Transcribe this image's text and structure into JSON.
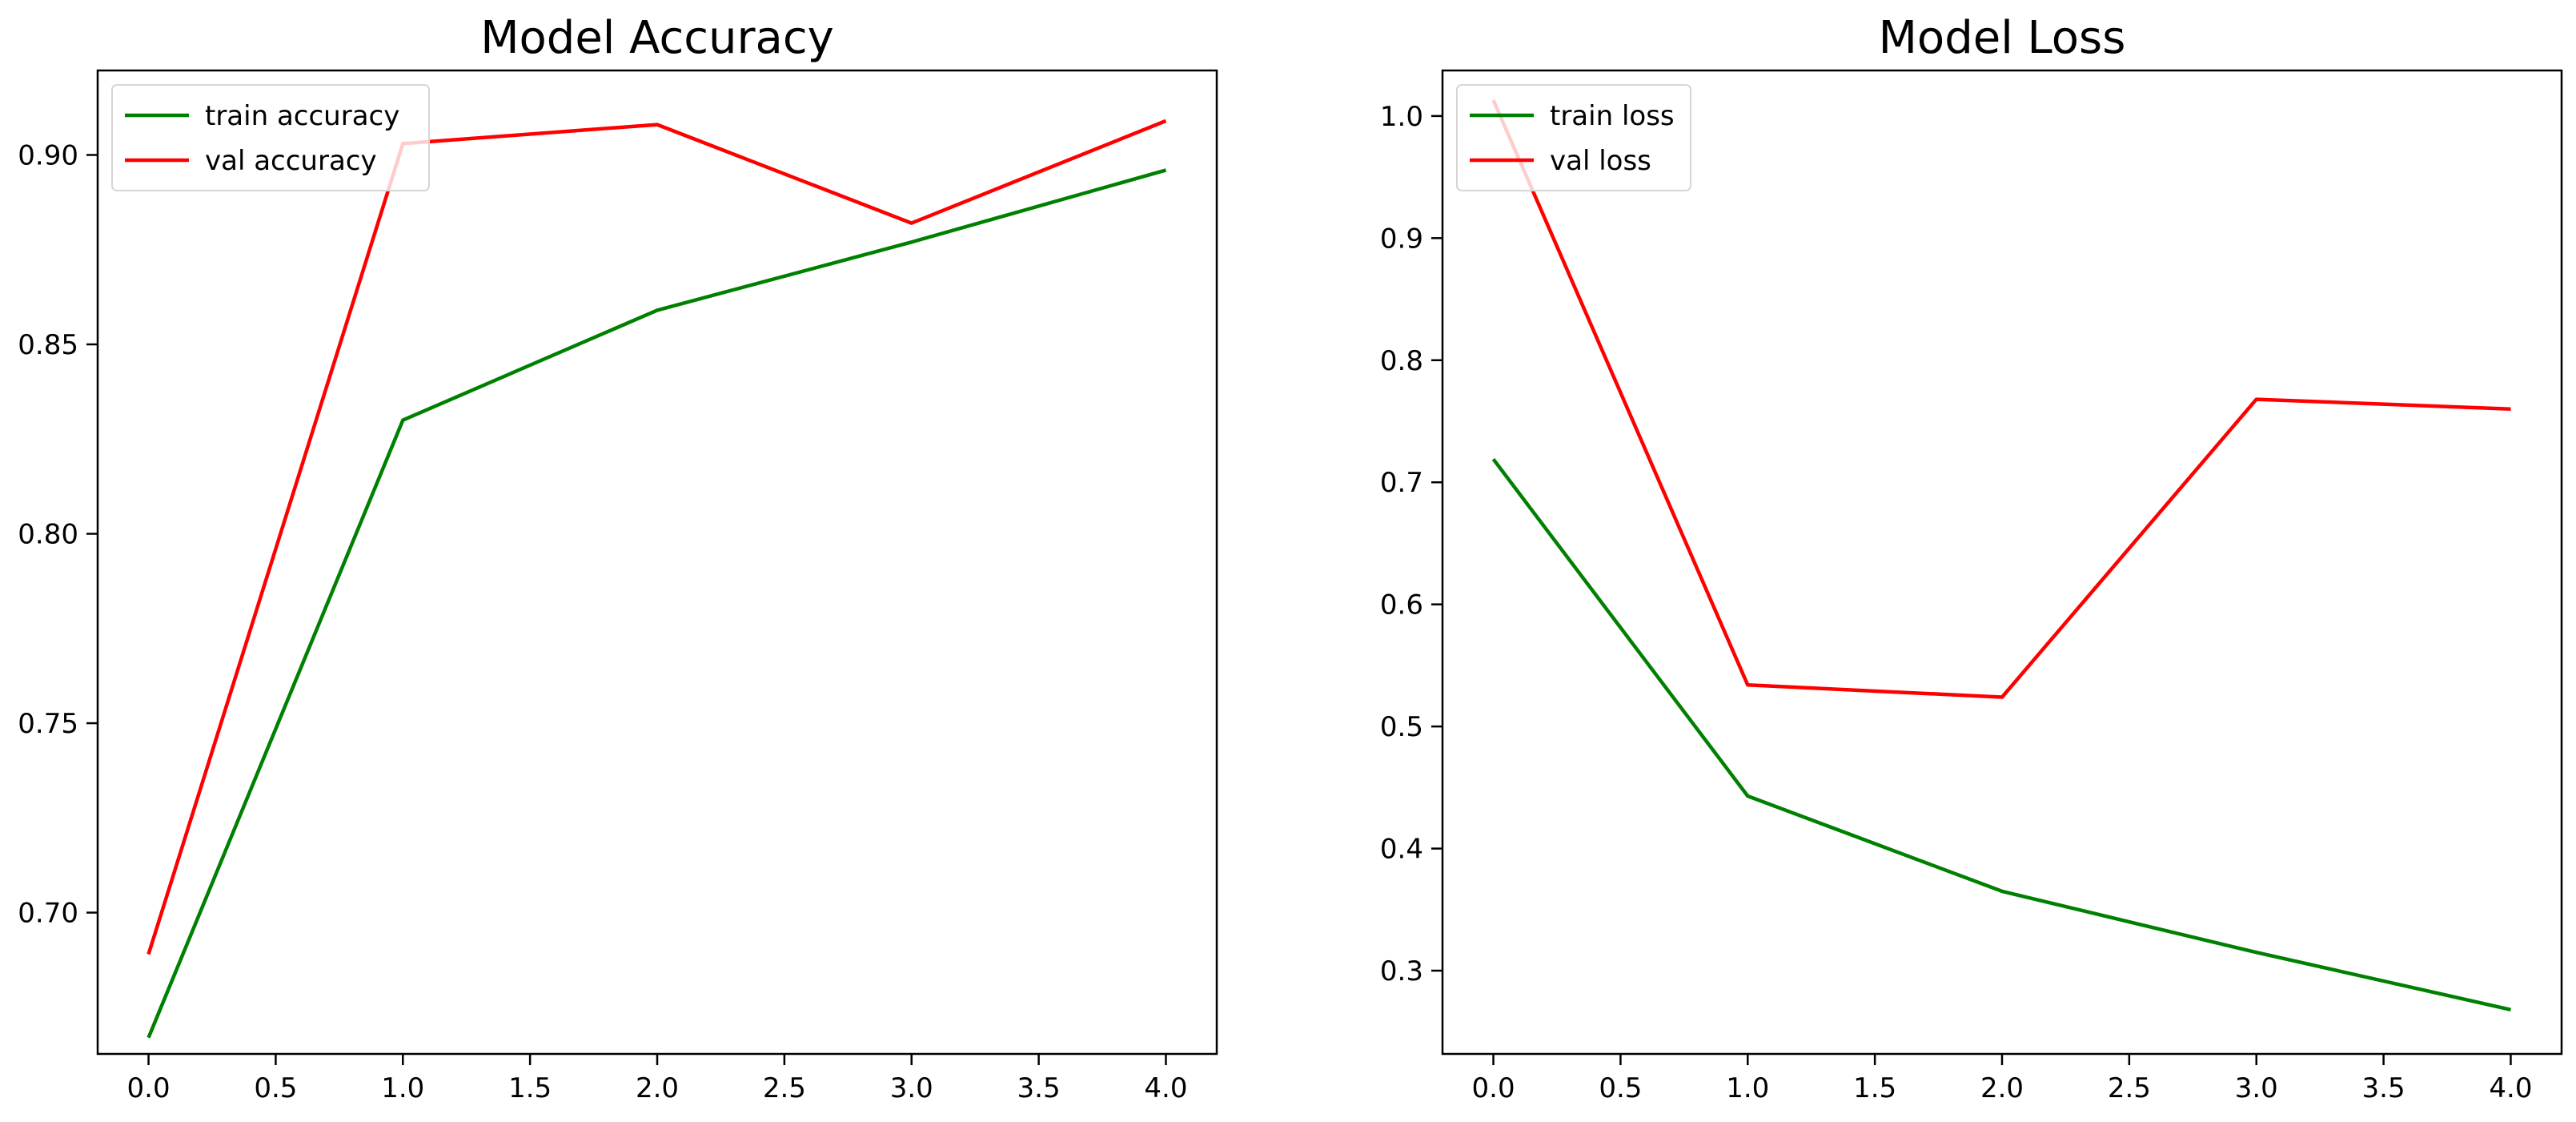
{
  "chart_data": [
    {
      "type": "line",
      "title": "Model Accuracy",
      "xlabel": "",
      "ylabel": "",
      "xlim": [
        -0.2,
        4.2
      ],
      "ylim": [
        0.6627,
        0.9223
      ],
      "xticks": [
        0.0,
        0.5,
        1.0,
        1.5,
        2.0,
        2.5,
        3.0,
        3.5,
        4.0
      ],
      "xtick_labels": [
        "0.0",
        "0.5",
        "1.0",
        "1.5",
        "2.0",
        "2.5",
        "3.0",
        "3.5",
        "4.0"
      ],
      "yticks": [
        0.7,
        0.75,
        0.8,
        0.85,
        0.9
      ],
      "ytick_labels": [
        "0.70",
        "0.75",
        "0.80",
        "0.85",
        "0.90"
      ],
      "grid": false,
      "legend_position": "upper-left",
      "x": [
        0,
        1,
        2,
        3,
        4
      ],
      "series": [
        {
          "name": "train accuracy",
          "color": "#008000",
          "values": [
            0.667,
            0.83,
            0.859,
            0.877,
            0.896
          ]
        },
        {
          "name": "val accuracy",
          "color": "#ff0000",
          "values": [
            0.689,
            0.903,
            0.908,
            0.882,
            0.909
          ]
        }
      ]
    },
    {
      "type": "line",
      "title": "Model Loss",
      "xlabel": "",
      "ylabel": "",
      "xlim": [
        -0.2,
        4.2
      ],
      "ylim": [
        0.2318,
        1.0373
      ],
      "xticks": [
        0.0,
        0.5,
        1.0,
        1.5,
        2.0,
        2.5,
        3.0,
        3.5,
        4.0
      ],
      "xtick_labels": [
        "0.0",
        "0.5",
        "1.0",
        "1.5",
        "2.0",
        "2.5",
        "3.0",
        "3.5",
        "4.0"
      ],
      "yticks": [
        0.3,
        0.4,
        0.5,
        0.6,
        0.7,
        0.8,
        0.9,
        1.0
      ],
      "ytick_labels": [
        "0.3",
        "0.4",
        "0.5",
        "0.6",
        "0.7",
        "0.8",
        "0.9",
        "1.0"
      ],
      "grid": false,
      "legend_position": "upper-left",
      "x": [
        0,
        1,
        2,
        3,
        4
      ],
      "series": [
        {
          "name": "train loss",
          "color": "#008000",
          "values": [
            0.719,
            0.443,
            0.365,
            0.315,
            0.268
          ]
        },
        {
          "name": "val loss",
          "color": "#ff0000",
          "values": [
            1.013,
            0.534,
            0.524,
            0.768,
            0.76
          ]
        }
      ]
    }
  ]
}
